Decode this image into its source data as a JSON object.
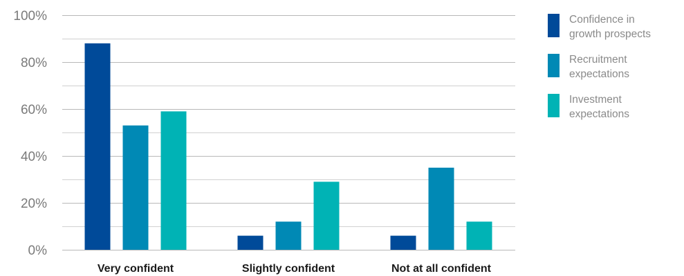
{
  "chart_data": {
    "type": "bar",
    "categories": [
      "Very confident",
      "Slightly confident",
      "Not at all confident"
    ],
    "series": [
      {
        "name": "Confidence in growth prospects",
        "legend_lines": [
          "Confidence in",
          "growth prospects"
        ],
        "color": "#004a99",
        "values": [
          88,
          6,
          6
        ]
      },
      {
        "name": "Recruitment expectations",
        "legend_lines": [
          "Recruitment",
          "expectations"
        ],
        "color": "#0089b5",
        "values": [
          53,
          12,
          35
        ]
      },
      {
        "name": "Investment expectations",
        "legend_lines": [
          "Investment",
          "expectations"
        ],
        "color": "#00b3b5",
        "values": [
          59,
          29,
          12
        ]
      }
    ],
    "yticks": [
      0,
      20,
      40,
      60,
      80,
      100
    ],
    "ytick_labels": [
      "0%",
      "20%",
      "40%",
      "60%",
      "80%",
      "100%"
    ],
    "ylim": [
      0,
      100
    ],
    "minor_grid_step": 10,
    "title": "",
    "xlabel": "",
    "ylabel": "",
    "grid": true,
    "legend": "right"
  }
}
